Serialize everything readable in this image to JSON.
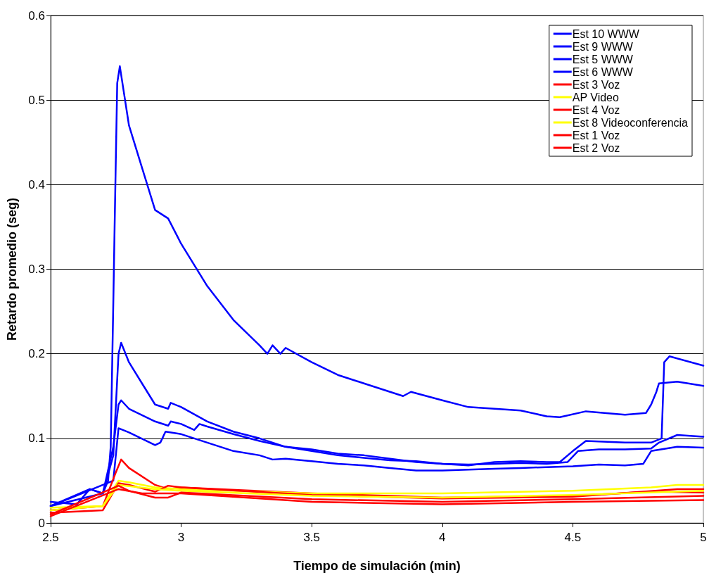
{
  "chart_data": {
    "type": "line",
    "xlabel": "Tiempo de simulación (min)",
    "ylabel": "Retardo promedio (seg)",
    "xlim": [
      2.5,
      5
    ],
    "xticks": [
      2.5,
      3,
      3.5,
      4,
      4.5,
      5
    ],
    "ylim": [
      0,
      0.6
    ],
    "yticks": [
      0,
      0.1,
      0.2,
      0.3,
      0.4,
      0.5,
      0.6
    ],
    "grid": "y",
    "legend": "top right",
    "marker": "none",
    "line_style": "solid",
    "series": [
      {
        "name": "Est 10 WWW",
        "color": "#0000ff",
        "x": [
          2.5,
          2.6,
          2.65,
          2.7,
          2.72,
          2.73,
          2.74,
          2.745,
          2.755,
          2.765,
          2.78,
          2.8,
          2.85,
          2.9,
          2.95,
          3.0,
          3.1,
          3.2,
          3.3,
          3.33,
          3.35,
          3.38,
          3.4,
          3.5,
          3.6,
          3.7,
          3.8,
          3.85,
          3.88,
          4.0,
          4.1,
          4.2,
          4.3,
          4.4,
          4.45,
          4.55,
          4.7,
          4.78,
          4.8,
          4.82,
          4.83,
          4.9,
          5.0
        ],
        "values": [
          0.025,
          0.022,
          0.04,
          0.035,
          0.05,
          0.09,
          0.26,
          0.35,
          0.52,
          0.54,
          0.51,
          0.47,
          0.42,
          0.37,
          0.36,
          0.33,
          0.28,
          0.24,
          0.21,
          0.2,
          0.21,
          0.2,
          0.207,
          0.19,
          0.175,
          0.165,
          0.155,
          0.15,
          0.155,
          0.145,
          0.137,
          0.135,
          0.133,
          0.126,
          0.125,
          0.132,
          0.128,
          0.13,
          0.14,
          0.155,
          0.165,
          0.167,
          0.162
        ]
      },
      {
        "name": "Est 9 WWW",
        "color": "#0000ff",
        "x": [
          2.5,
          2.65,
          2.7,
          2.74,
          2.76,
          2.77,
          2.8,
          2.85,
          2.9,
          2.95,
          2.96,
          3.0,
          3.1,
          3.2,
          3.3,
          3.4,
          3.5,
          3.6,
          3.7,
          3.8,
          3.9,
          4.0,
          4.1,
          4.2,
          4.3,
          4.4,
          4.45,
          4.5,
          4.55,
          4.7,
          4.8,
          4.84,
          4.85,
          4.87,
          5.0
        ],
        "values": [
          0.02,
          0.04,
          0.035,
          0.08,
          0.2,
          0.213,
          0.19,
          0.165,
          0.14,
          0.135,
          0.142,
          0.137,
          0.12,
          0.108,
          0.1,
          0.09,
          0.087,
          0.082,
          0.08,
          0.076,
          0.072,
          0.07,
          0.068,
          0.072,
          0.073,
          0.072,
          0.072,
          0.085,
          0.097,
          0.095,
          0.095,
          0.1,
          0.19,
          0.197,
          0.186
        ]
      },
      {
        "name": "Est 5 WWW",
        "color": "#0000ff",
        "x": [
          2.5,
          2.7,
          2.74,
          2.76,
          2.77,
          2.8,
          2.9,
          2.95,
          2.96,
          3.0,
          3.05,
          3.07,
          3.1,
          3.2,
          3.3,
          3.4,
          3.5,
          3.6,
          3.7,
          3.8,
          3.9,
          4.0,
          4.1,
          4.2,
          4.3,
          4.4,
          4.48,
          4.52,
          4.6,
          4.7,
          4.8,
          4.83,
          4.9,
          5.0
        ],
        "values": [
          0.02,
          0.035,
          0.09,
          0.14,
          0.145,
          0.135,
          0.12,
          0.115,
          0.12,
          0.117,
          0.11,
          0.117,
          0.114,
          0.105,
          0.097,
          0.09,
          0.085,
          0.08,
          0.077,
          0.074,
          0.073,
          0.07,
          0.069,
          0.07,
          0.071,
          0.07,
          0.072,
          0.085,
          0.087,
          0.087,
          0.088,
          0.095,
          0.104,
          0.102
        ]
      },
      {
        "name": "Est 6 WWW",
        "color": "#0000ff",
        "x": [
          2.5,
          2.74,
          2.76,
          2.8,
          2.9,
          2.92,
          2.94,
          3.0,
          3.1,
          3.2,
          3.3,
          3.35,
          3.4,
          3.5,
          3.6,
          3.7,
          3.8,
          3.9,
          4.0,
          4.1,
          4.2,
          4.3,
          4.4,
          4.5,
          4.6,
          4.7,
          4.77,
          4.8,
          4.9,
          5.0
        ],
        "values": [
          0.02,
          0.05,
          0.112,
          0.107,
          0.092,
          0.095,
          0.108,
          0.105,
          0.095,
          0.085,
          0.08,
          0.075,
          0.076,
          0.073,
          0.07,
          0.068,
          0.065,
          0.062,
          0.062,
          0.063,
          0.064,
          0.065,
          0.066,
          0.067,
          0.069,
          0.068,
          0.07,
          0.085,
          0.09,
          0.089
        ]
      },
      {
        "name": "Est 3 Voz",
        "color": "#ff0000",
        "x": [
          2.5,
          2.7,
          2.75,
          2.77,
          2.8,
          2.9,
          2.95,
          3.0,
          3.5,
          4.0,
          4.5,
          4.8,
          5.0
        ],
        "values": [
          0.015,
          0.02,
          0.06,
          0.075,
          0.065,
          0.045,
          0.04,
          0.042,
          0.035,
          0.03,
          0.032,
          0.037,
          0.036
        ]
      },
      {
        "name": "AP Video",
        "color": "#ffff00",
        "x": [
          2.5,
          2.7,
          2.76,
          2.8,
          2.9,
          3.0,
          3.5,
          4.0,
          4.5,
          4.8,
          4.9,
          5.0
        ],
        "values": [
          0.018,
          0.02,
          0.05,
          0.048,
          0.042,
          0.04,
          0.035,
          0.035,
          0.038,
          0.042,
          0.045,
          0.045
        ]
      },
      {
        "name": "Est 4 Voz",
        "color": "#ff0000",
        "x": [
          2.5,
          2.7,
          2.76,
          2.8,
          2.9,
          2.95,
          3.0,
          3.5,
          4.0,
          4.5,
          4.9,
          5.0
        ],
        "values": [
          0.012,
          0.015,
          0.047,
          0.045,
          0.037,
          0.044,
          0.042,
          0.033,
          0.029,
          0.031,
          0.04,
          0.04
        ]
      },
      {
        "name": "Est 8 Videoconferencia",
        "color": "#ffff00",
        "x": [
          2.5,
          2.7,
          2.76,
          2.9,
          3.0,
          3.5,
          4.0,
          4.5,
          4.9,
          5.0
        ],
        "values": [
          0.015,
          0.02,
          0.045,
          0.04,
          0.038,
          0.032,
          0.03,
          0.033,
          0.037,
          0.038
        ]
      },
      {
        "name": "Est 1 Voz",
        "color": "#ff0000",
        "x": [
          2.5,
          2.76,
          2.8,
          2.9,
          2.95,
          3.0,
          3.5,
          4.0,
          4.5,
          5.0
        ],
        "values": [
          0.01,
          0.044,
          0.038,
          0.03,
          0.03,
          0.036,
          0.028,
          0.025,
          0.028,
          0.032
        ]
      },
      {
        "name": "Est 2 Voz",
        "color": "#ff0000",
        "x": [
          2.5,
          2.76,
          2.85,
          3.0,
          3.5,
          4.0,
          4.5,
          5.0
        ],
        "values": [
          0.008,
          0.04,
          0.035,
          0.035,
          0.025,
          0.022,
          0.025,
          0.027
        ]
      }
    ]
  }
}
